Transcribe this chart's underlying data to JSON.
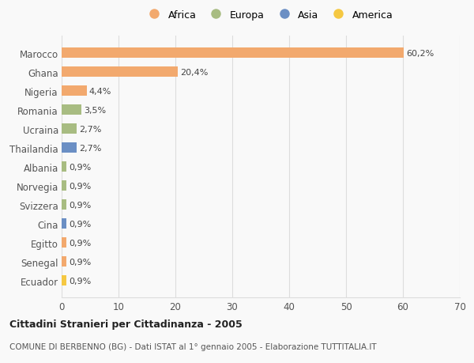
{
  "countries": [
    "Marocco",
    "Ghana",
    "Nigeria",
    "Romania",
    "Ucraina",
    "Thailandia",
    "Albania",
    "Norvegia",
    "Svizzera",
    "Cina",
    "Egitto",
    "Senegal",
    "Ecuador"
  ],
  "values": [
    60.2,
    20.4,
    4.4,
    3.5,
    2.7,
    2.7,
    0.9,
    0.9,
    0.9,
    0.9,
    0.9,
    0.9,
    0.9
  ],
  "labels": [
    "60,2%",
    "20,4%",
    "4,4%",
    "3,5%",
    "2,7%",
    "2,7%",
    "0,9%",
    "0,9%",
    "0,9%",
    "0,9%",
    "0,9%",
    "0,9%",
    "0,9%"
  ],
  "continents": [
    "Africa",
    "Africa",
    "Africa",
    "Europa",
    "Europa",
    "Asia",
    "Europa",
    "Europa",
    "Europa",
    "Asia",
    "Africa",
    "Africa",
    "America"
  ],
  "colors": {
    "Africa": "#F2A96E",
    "Europa": "#A8BC82",
    "Asia": "#6B8FC4",
    "America": "#F5C842"
  },
  "legend_order": [
    "Africa",
    "Europa",
    "Asia",
    "America"
  ],
  "xlim": [
    0,
    70
  ],
  "xticks": [
    0,
    10,
    20,
    30,
    40,
    50,
    60,
    70
  ],
  "title": "Cittadini Stranieri per Cittadinanza - 2005",
  "subtitle": "COMUNE DI BERBENNO (BG) - Dati ISTAT al 1° gennaio 2005 - Elaborazione TUTTITALIA.IT",
  "bg_color": "#f9f9f9",
  "bar_height": 0.55,
  "grid_color": "#dddddd",
  "label_fontsize": 8,
  "tick_fontsize": 8.5,
  "title_fontsize": 9,
  "subtitle_fontsize": 7.5,
  "legend_fontsize": 9
}
